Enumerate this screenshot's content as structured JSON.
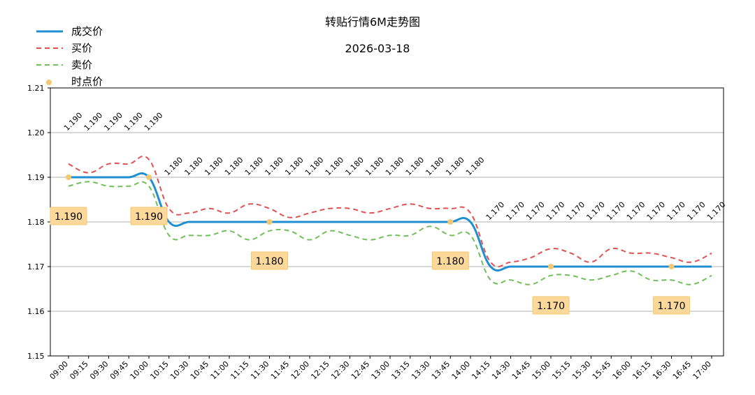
{
  "chart_data": {
    "type": "line",
    "title": "转贴行情6M走势图",
    "subtitle": "2026-03-18",
    "ylim": [
      1.15,
      1.21
    ],
    "y_ticks": [
      "1.15",
      "1.16",
      "1.17",
      "1.18",
      "1.19",
      "1.20",
      "1.21"
    ],
    "grid": "horizontal",
    "legend": "top-left",
    "categories": [
      "09:00",
      "09:15",
      "09:30",
      "09:45",
      "10:00",
      "10:15",
      "10:30",
      "10:45",
      "11:00",
      "11:15",
      "11:30",
      "11:45",
      "12:00",
      "12:15",
      "12:30",
      "12:45",
      "13:00",
      "13:15",
      "13:30",
      "13:45",
      "14:00",
      "14:15",
      "14:30",
      "14:45",
      "15:00",
      "15:15",
      "15:30",
      "15:45",
      "16:00",
      "16:15",
      "16:30",
      "16:45",
      "17:00"
    ],
    "series": [
      {
        "name": "成交价",
        "color": "#1f8fd1",
        "style": "solid",
        "values": [
          1.19,
          1.19,
          1.19,
          1.19,
          1.19,
          1.18,
          1.18,
          1.18,
          1.18,
          1.18,
          1.18,
          1.18,
          1.18,
          1.18,
          1.18,
          1.18,
          1.18,
          1.18,
          1.18,
          1.18,
          1.18,
          1.17,
          1.17,
          1.17,
          1.17,
          1.17,
          1.17,
          1.17,
          1.17,
          1.17,
          1.17,
          1.17,
          1.17
        ]
      },
      {
        "name": "买价",
        "color": "#e05252",
        "style": "dashed",
        "values": [
          1.193,
          1.191,
          1.193,
          1.193,
          1.194,
          1.183,
          1.182,
          1.183,
          1.182,
          1.184,
          1.183,
          1.181,
          1.182,
          1.183,
          1.183,
          1.182,
          1.183,
          1.184,
          1.183,
          1.183,
          1.182,
          1.171,
          1.171,
          1.172,
          1.174,
          1.173,
          1.171,
          1.174,
          1.173,
          1.173,
          1.172,
          1.171,
          1.173
        ]
      },
      {
        "name": "卖价",
        "color": "#6fc05a",
        "style": "dashed",
        "values": [
          1.188,
          1.189,
          1.188,
          1.188,
          1.188,
          1.177,
          1.177,
          1.177,
          1.178,
          1.176,
          1.178,
          1.178,
          1.176,
          1.178,
          1.177,
          1.176,
          1.177,
          1.177,
          1.179,
          1.177,
          1.177,
          1.167,
          1.167,
          1.166,
          1.168,
          1.168,
          1.167,
          1.168,
          1.169,
          1.167,
          1.167,
          1.166,
          1.168
        ]
      }
    ],
    "point_series": {
      "name": "时点价",
      "color": "#f5c76e",
      "points": [
        {
          "x": "09:00",
          "y": 1.19,
          "label": "1.190"
        },
        {
          "x": "10:00",
          "y": 1.19,
          "label": "1.190"
        },
        {
          "x": "11:30",
          "y": 1.18,
          "label": "1.180"
        },
        {
          "x": "13:45",
          "y": 1.18,
          "label": "1.180"
        },
        {
          "x": "15:00",
          "y": 1.17,
          "label": "1.170"
        },
        {
          "x": "16:30",
          "y": 1.17,
          "label": "1.170"
        }
      ]
    },
    "value_labels": [
      "1.190",
      "1.190",
      "1.190",
      "1.190",
      "1.190",
      "1.180",
      "1.180",
      "1.180",
      "1.180",
      "1.180",
      "1.180",
      "1.180",
      "1.180",
      "1.180",
      "1.180",
      "1.180",
      "1.180",
      "1.180",
      "1.180",
      "1.180",
      "1.180",
      "1.170",
      "1.170",
      "1.170",
      "1.170",
      "1.170",
      "1.170",
      "1.170",
      "1.170",
      "1.170",
      "1.170",
      "1.170",
      "1.170"
    ]
  }
}
